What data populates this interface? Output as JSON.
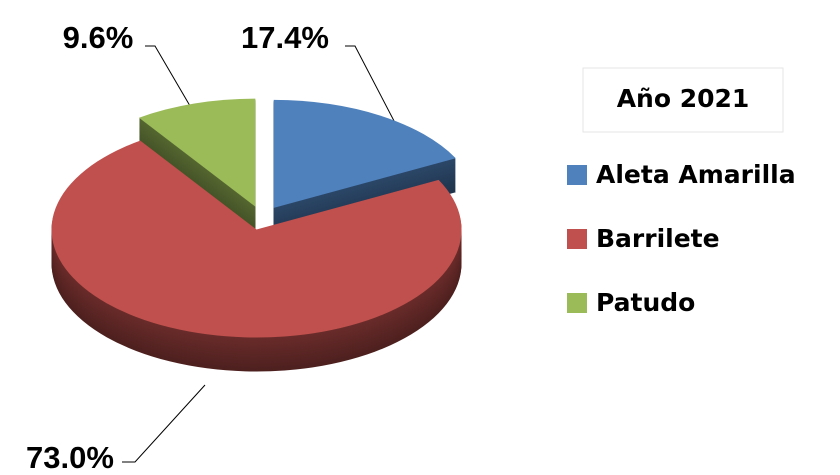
{
  "chart_data": {
    "type": "pie",
    "legend_title": "Año 2021",
    "categories": [
      "Aleta Amarilla",
      "Barrilete",
      "Patudo"
    ],
    "values": [
      17.4,
      73.0,
      9.6
    ],
    "value_labels": [
      "17.4%",
      "73.0%",
      "9.6%"
    ],
    "colors": [
      "#4f81bd",
      "#c0504d",
      "#9bbb59"
    ],
    "legend": "right"
  }
}
